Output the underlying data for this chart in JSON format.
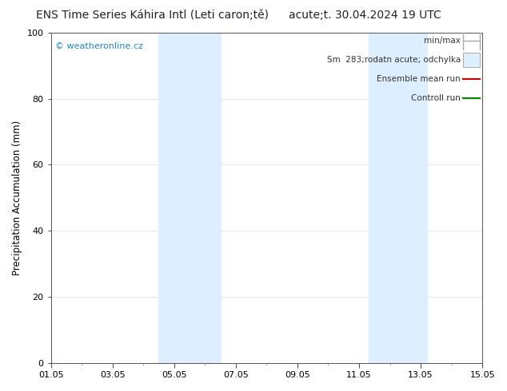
{
  "title": "ENS Time Series Káhira Intl (Leti caron;tě)",
  "subtitle": "acute;t. 30.04.2024 19 UTC",
  "ylabel": "Precipitation Accumulation (mm)",
  "ylim": [
    0,
    100
  ],
  "yticks": [
    0,
    20,
    40,
    60,
    80,
    100
  ],
  "xtick_labels": [
    "01.05",
    "03.05",
    "05.05",
    "07.05",
    "09.05",
    "11.05",
    "13.05",
    "15.05"
  ],
  "xtick_positions": [
    0,
    2,
    4,
    6,
    8,
    10,
    12,
    14
  ],
  "xlim": [
    0,
    14
  ],
  "watermark": "© weatheronline.cz",
  "shaded_regions": [
    {
      "x_start": 3.5,
      "x_end": 5.5
    },
    {
      "x_start": 10.3,
      "x_end": 12.2
    }
  ],
  "shaded_color": "#ddeeff",
  "legend_labels": [
    "min/max",
    "Sm  283;rodatn acute; odchylka",
    "Ensemble mean run",
    "Controll run"
  ],
  "legend_line_colors": [
    "#aaaaaa",
    "#ccddee",
    "#cc0000",
    "#008800"
  ],
  "legend_styles": [
    "minmax",
    "rect",
    "line",
    "line"
  ],
  "background_color": "#ffffff",
  "grid_color": "#dddddd",
  "title_fontsize": 10,
  "subtitle_fontsize": 10,
  "label_fontsize": 8.5,
  "tick_fontsize": 8,
  "legend_fontsize": 7.5,
  "watermark_fontsize": 8
}
